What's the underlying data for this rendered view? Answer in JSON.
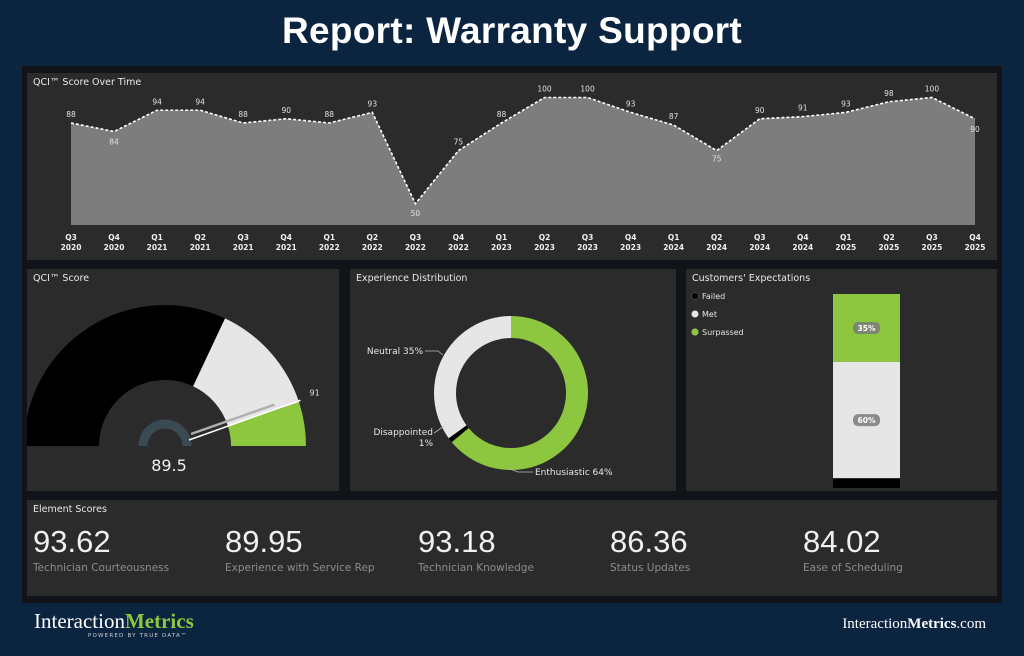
{
  "page": {
    "title": "Report: Warranty Support"
  },
  "timeline": {
    "title": "QCI™ Score Over Time",
    "chart_data": {
      "type": "area",
      "x": [
        "Q3 2020",
        "Q4 2020",
        "Q1 2021",
        "Q2 2021",
        "Q3 2021",
        "Q4 2021",
        "Q1 2022",
        "Q2 2022",
        "Q3 2022",
        "Q4 2022",
        "Q1 2023",
        "Q2 2023",
        "Q3 2023",
        "Q4 2023",
        "Q1 2024",
        "Q2 2024",
        "Q3 2024",
        "Q4 2024",
        "Q1 2025",
        "Q2 2025",
        "Q3 2025",
        "Q4 2025"
      ],
      "tick_lines": [
        [
          "Q3",
          "2020"
        ],
        [
          "Q4",
          "2020"
        ],
        [
          "Q1",
          "2021"
        ],
        [
          "Q2",
          "2021"
        ],
        [
          "Q3",
          "2021"
        ],
        [
          "Q4",
          "2021"
        ],
        [
          "Q1",
          "2022"
        ],
        [
          "Q2",
          "2022"
        ],
        [
          "Q3",
          "2022"
        ],
        [
          "Q4",
          "2022"
        ],
        [
          "Q1",
          "2023"
        ],
        [
          "Q2",
          "2023"
        ],
        [
          "Q3",
          "2023"
        ],
        [
          "Q4",
          "2023"
        ],
        [
          "Q1",
          "2024"
        ],
        [
          "Q2",
          "2024"
        ],
        [
          "Q3",
          "2024"
        ],
        [
          "Q4",
          "2024"
        ],
        [
          "Q1",
          "2025"
        ],
        [
          "Q2",
          "2025"
        ],
        [
          "Q3",
          "2025"
        ],
        [
          "Q4",
          "2025"
        ]
      ],
      "values": [
        88,
        84,
        94,
        94,
        88,
        90,
        88,
        93,
        50,
        75,
        88,
        100,
        100,
        93,
        87,
        75,
        90,
        91,
        93,
        98,
        100,
        90
      ],
      "ylim": [
        40,
        104
      ],
      "colors": {
        "fill": "#7d7d7d",
        "line": "#ffffff"
      }
    }
  },
  "qci_score": {
    "title": "QCI™ Score",
    "value": "89.5",
    "target_label": "91",
    "chart_data": {
      "type": "gauge",
      "value": 89.5,
      "target": 91,
      "bands": [
        {
          "color": "#000000",
          "share": 0.64
        },
        {
          "color": "#e6e6e6",
          "share": 0.26
        },
        {
          "color": "#8dc63f",
          "share": 0.1
        }
      ]
    }
  },
  "experience": {
    "title": "Experience Distribution",
    "chart_data": {
      "type": "pie",
      "slices": [
        {
          "label": "Enthusiastic 64%",
          "value": 64,
          "color": "#8dc63f"
        },
        {
          "label": "Disappointed 1%",
          "value": 1,
          "color": "#000000"
        },
        {
          "label": "Neutral 35%",
          "value": 35,
          "color": "#e6e6e6"
        }
      ],
      "disappointed_lines": [
        "Disappointed",
        "1%"
      ]
    }
  },
  "expectations": {
    "title": "Customers' Expectations",
    "legend": [
      {
        "label": "Failed",
        "color": "#000000"
      },
      {
        "label": "Met",
        "color": "#e6e6e6"
      },
      {
        "label": "Surpassed",
        "color": "#8dc63f"
      }
    ],
    "chart_data": {
      "type": "bar",
      "stacked": true,
      "segments": [
        {
          "name": "Surpassed",
          "value": 35,
          "label": "35%",
          "color": "#8dc63f"
        },
        {
          "name": "Met",
          "value": 60,
          "label": "60%",
          "color": "#e6e6e6"
        },
        {
          "name": "Failed",
          "value": 5,
          "label": "",
          "color": "#000000"
        }
      ]
    }
  },
  "elements": {
    "title": "Element Scores",
    "items": [
      {
        "value": "93.62",
        "label": "Technician Courteousness"
      },
      {
        "value": "89.95",
        "label": "Experience with Service Rep"
      },
      {
        "value": "93.18",
        "label": "Technician Knowledge"
      },
      {
        "value": "86.36",
        "label": "Status Updates"
      },
      {
        "value": "84.02",
        "label": "Ease of Scheduling"
      }
    ]
  },
  "footer": {
    "logo_part1": "Interaction",
    "logo_part2": "Metrics",
    "logo_tagline": "POWERED BY TRUE DATA™",
    "site_part1": "Interaction",
    "site_part2": "Metrics",
    "site_part3": ".com"
  }
}
